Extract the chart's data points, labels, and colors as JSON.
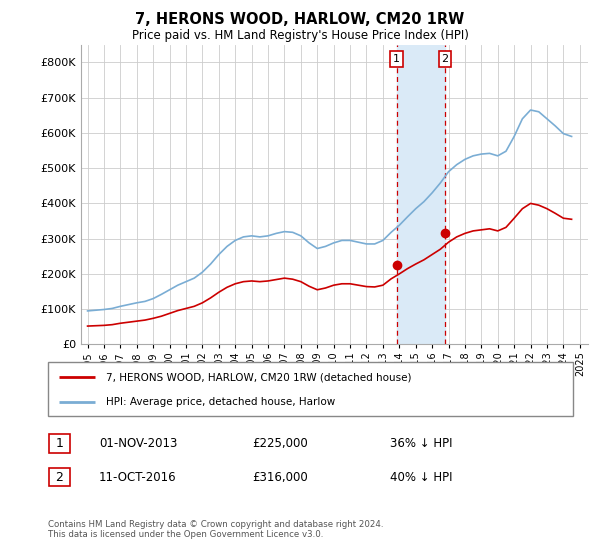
{
  "title": "7, HERONS WOOD, HARLOW, CM20 1RW",
  "subtitle": "Price paid vs. HM Land Registry's House Price Index (HPI)",
  "ylim": [
    0,
    850000
  ],
  "yticks": [
    0,
    100000,
    200000,
    300000,
    400000,
    500000,
    600000,
    700000,
    800000
  ],
  "sale1_date": 2013.83,
  "sale1_price": 225000,
  "sale2_date": 2016.78,
  "sale2_price": 316000,
  "hpi_color": "#7aadd4",
  "sale_color": "#cc0000",
  "shaded_color": "#daeaf7",
  "vline_color": "#cc0000",
  "legend_label_red": "7, HERONS WOOD, HARLOW, CM20 1RW (detached house)",
  "legend_label_blue": "HPI: Average price, detached house, Harlow",
  "footer": "Contains HM Land Registry data © Crown copyright and database right 2024.\nThis data is licensed under the Open Government Licence v3.0.",
  "hpi_data_years": [
    1995.0,
    1995.5,
    1996.0,
    1996.5,
    1997.0,
    1997.5,
    1998.0,
    1998.5,
    1999.0,
    1999.5,
    2000.0,
    2000.5,
    2001.0,
    2001.5,
    2002.0,
    2002.5,
    2003.0,
    2003.5,
    2004.0,
    2004.5,
    2005.0,
    2005.5,
    2006.0,
    2006.5,
    2007.0,
    2007.5,
    2008.0,
    2008.5,
    2009.0,
    2009.5,
    2010.0,
    2010.5,
    2011.0,
    2011.5,
    2012.0,
    2012.5,
    2013.0,
    2013.5,
    2014.0,
    2014.5,
    2015.0,
    2015.5,
    2016.0,
    2016.5,
    2017.0,
    2017.5,
    2018.0,
    2018.5,
    2019.0,
    2019.5,
    2020.0,
    2020.5,
    2021.0,
    2021.5,
    2022.0,
    2022.5,
    2023.0,
    2023.5,
    2024.0,
    2024.5
  ],
  "hpi_data_vals": [
    95000,
    97000,
    99000,
    102000,
    108000,
    113000,
    118000,
    122000,
    130000,
    142000,
    155000,
    168000,
    178000,
    188000,
    205000,
    228000,
    255000,
    278000,
    295000,
    305000,
    308000,
    305000,
    308000,
    315000,
    320000,
    318000,
    308000,
    288000,
    272000,
    278000,
    288000,
    295000,
    295000,
    290000,
    285000,
    285000,
    295000,
    318000,
    338000,
    362000,
    385000,
    405000,
    430000,
    458000,
    490000,
    510000,
    525000,
    535000,
    540000,
    542000,
    535000,
    548000,
    590000,
    640000,
    665000,
    660000,
    640000,
    620000,
    598000,
    590000
  ],
  "sale_data_years": [
    1995.0,
    1995.5,
    1996.0,
    1996.5,
    1997.0,
    1997.5,
    1998.0,
    1998.5,
    1999.0,
    1999.5,
    2000.0,
    2000.5,
    2001.0,
    2001.5,
    2002.0,
    2002.5,
    2003.0,
    2003.5,
    2004.0,
    2004.5,
    2005.0,
    2005.5,
    2006.0,
    2006.5,
    2007.0,
    2007.5,
    2008.0,
    2008.5,
    2009.0,
    2009.5,
    2010.0,
    2010.5,
    2011.0,
    2011.5,
    2012.0,
    2012.5,
    2013.0,
    2013.5,
    2014.0,
    2014.5,
    2015.0,
    2015.5,
    2016.0,
    2016.5,
    2017.0,
    2017.5,
    2018.0,
    2018.5,
    2019.0,
    2019.5,
    2020.0,
    2020.5,
    2021.0,
    2021.5,
    2022.0,
    2022.5,
    2023.0,
    2023.5,
    2024.0,
    2024.5
  ],
  "sale_data_vals": [
    52000,
    53000,
    54000,
    56000,
    60000,
    63000,
    66000,
    69000,
    74000,
    80000,
    88000,
    96000,
    102000,
    108000,
    118000,
    132000,
    148000,
    162000,
    172000,
    178000,
    180000,
    178000,
    180000,
    184000,
    188000,
    185000,
    178000,
    165000,
    155000,
    160000,
    168000,
    172000,
    172000,
    168000,
    164000,
    163000,
    168000,
    186000,
    200000,
    215000,
    228000,
    240000,
    255000,
    270000,
    290000,
    305000,
    315000,
    322000,
    325000,
    328000,
    322000,
    332000,
    358000,
    385000,
    400000,
    395000,
    385000,
    372000,
    358000,
    355000
  ]
}
